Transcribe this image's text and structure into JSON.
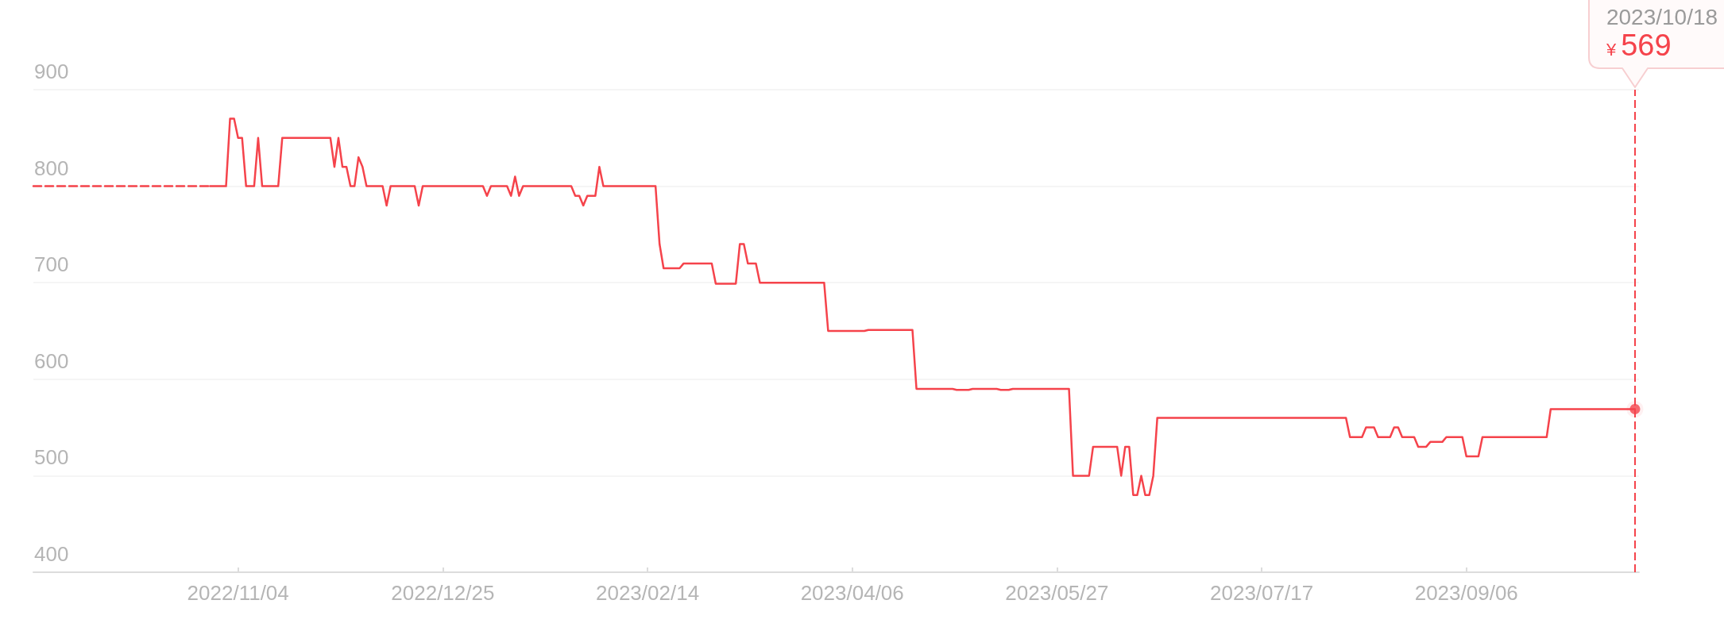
{
  "chart_data": {
    "type": "line",
    "xlim": [
      "2022-09-14",
      "2023-10-19"
    ],
    "xticks": [
      {
        "value": "2022-11-04",
        "label": "2022/11/04"
      },
      {
        "value": "2022-12-25",
        "label": "2022/12/25"
      },
      {
        "value": "2023-02-14",
        "label": "2023/02/14"
      },
      {
        "value": "2023-04-06",
        "label": "2023/04/06"
      },
      {
        "value": "2023-05-27",
        "label": "2023/05/27"
      },
      {
        "value": "2023-07-17",
        "label": "2023/07/17"
      },
      {
        "value": "2023-09-06",
        "label": "2023/09/06"
      }
    ],
    "ylim": [
      400,
      900
    ],
    "yticks": [
      400,
      500,
      600,
      700,
      800,
      900
    ],
    "grid": "y",
    "marker": "none",
    "series": [
      {
        "color": "#f5434b",
        "line_style": "dashed",
        "x": [
          "2022-09-14",
          "2022-10-28"
        ],
        "values": [
          800,
          800
        ]
      },
      {
        "color": "#f5434b",
        "x": [
          "2022-10-28",
          "2022-11-01",
          "2022-11-02",
          "2022-11-03",
          "2022-11-04",
          "2022-11-05",
          "2022-11-06",
          "2022-11-08",
          "2022-11-09",
          "2022-11-10",
          "2022-11-14",
          "2022-11-15",
          "2022-11-27",
          "2022-11-28",
          "2022-11-29",
          "2022-11-30",
          "2022-12-01",
          "2022-12-02",
          "2022-12-03",
          "2022-12-04",
          "2022-12-05",
          "2022-12-06",
          "2022-12-10",
          "2022-12-11",
          "2022-12-12",
          "2022-12-18",
          "2022-12-19",
          "2022-12-20",
          "2023-01-04",
          "2023-01-05",
          "2023-01-06",
          "2023-01-10",
          "2023-01-11",
          "2023-01-12",
          "2023-01-13",
          "2023-01-14",
          "2023-01-26",
          "2023-01-27",
          "2023-01-28",
          "2023-01-29",
          "2023-01-30",
          "2023-02-01",
          "2023-02-02",
          "2023-02-03",
          "2023-02-16",
          "2023-02-17",
          "2023-02-18",
          "2023-02-22",
          "2023-02-23",
          "2023-03-02",
          "2023-03-03",
          "2023-03-08",
          "2023-03-09",
          "2023-03-10",
          "2023-03-11",
          "2023-03-13",
          "2023-03-14",
          "2023-03-30",
          "2023-03-31",
          "2023-04-09",
          "2023-04-10",
          "2023-04-21",
          "2023-04-22",
          "2023-05-01",
          "2023-05-02",
          "2023-05-05",
          "2023-05-06",
          "2023-05-12",
          "2023-05-13",
          "2023-05-15",
          "2023-05-16",
          "2023-05-30",
          "2023-05-31",
          "2023-06-04",
          "2023-06-05",
          "2023-06-11",
          "2023-06-12",
          "2023-06-13",
          "2023-06-14",
          "2023-06-15",
          "2023-06-16",
          "2023-06-17",
          "2023-06-18",
          "2023-06-19",
          "2023-06-20",
          "2023-06-21",
          "2023-08-07",
          "2023-08-08",
          "2023-08-11",
          "2023-08-12",
          "2023-08-14",
          "2023-08-15",
          "2023-08-18",
          "2023-08-19",
          "2023-08-20",
          "2023-08-21",
          "2023-08-24",
          "2023-08-25",
          "2023-08-27",
          "2023-08-28",
          "2023-08-31",
          "2023-09-01",
          "2023-09-05",
          "2023-09-06",
          "2023-09-09",
          "2023-09-10",
          "2023-09-26",
          "2023-09-27",
          "2023-10-18"
        ],
        "values": [
          800,
          800,
          870,
          870,
          850,
          850,
          800,
          800,
          850,
          800,
          800,
          850,
          850,
          820,
          850,
          820,
          820,
          800,
          800,
          830,
          820,
          800,
          800,
          780,
          800,
          800,
          780,
          800,
          800,
          790,
          800,
          800,
          790,
          810,
          790,
          800,
          800,
          790,
          790,
          780,
          790,
          790,
          820,
          800,
          800,
          740,
          715,
          715,
          720,
          720,
          699,
          699,
          740,
          740,
          720,
          720,
          700,
          700,
          650,
          650,
          651,
          651,
          590,
          590,
          589,
          589,
          590,
          590,
          589,
          589,
          590,
          590,
          500,
          500,
          530,
          530,
          500,
          530,
          530,
          480,
          480,
          500,
          480,
          480,
          500,
          560,
          560,
          540,
          540,
          550,
          550,
          540,
          540,
          550,
          550,
          540,
          540,
          530,
          530,
          535,
          535,
          540,
          540,
          520,
          520,
          540,
          540,
          569,
          569
        ]
      },
      {
        "type": "scatter",
        "color": "#f5434b",
        "marker": "circle",
        "x": [
          "2023-10-18"
        ],
        "values": [
          569
        ]
      }
    ],
    "ref_lines": [
      {
        "axis": "x",
        "value": "2023-10-18",
        "color": "#f5434b",
        "line_style": "dashed"
      }
    ],
    "annotations": [
      "2023/10/18",
      "¥569"
    ]
  }
}
